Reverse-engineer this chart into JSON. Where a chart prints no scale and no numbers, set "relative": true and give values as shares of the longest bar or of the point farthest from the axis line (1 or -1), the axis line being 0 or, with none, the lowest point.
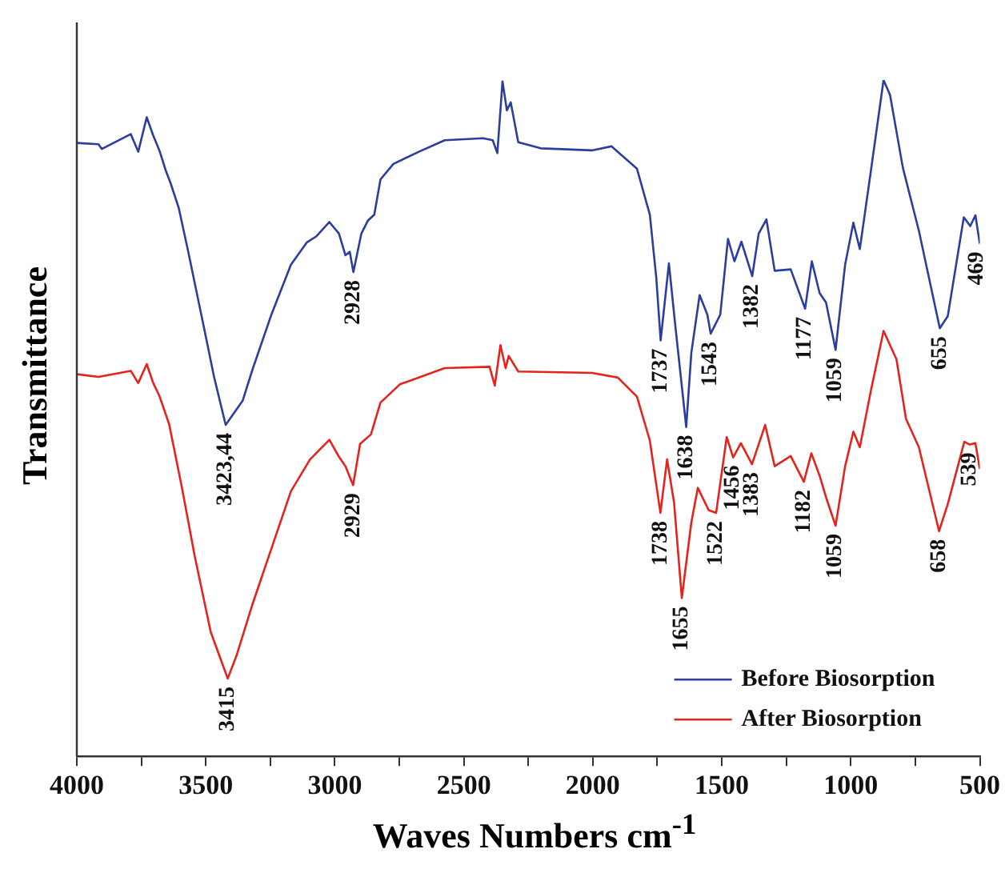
{
  "chart_data": {
    "type": "line",
    "xlabel": "Waves Numbers cm$^{-1}$",
    "ylabel": "Transmittance",
    "relative": true,
    "legend": "bottom right",
    "marker": "none",
    "line_style": "solid",
    "grid": false,
    "xlim": [
      4000,
      500
    ],
    "xticks": [
      4000,
      {
        "value": 3750,
        "label": null
      },
      3500,
      {
        "value": 3250,
        "label": null
      },
      3000,
      {
        "value": 2750,
        "label": null
      },
      2500,
      {
        "value": 2250,
        "label": null
      },
      2000,
      {
        "value": 1750,
        "label": null
      },
      1500,
      {
        "value": 1250,
        "label": null
      },
      1000,
      {
        "value": 750,
        "label": null
      },
      500
    ],
    "series": [
      {
        "name": "Before Biosorption",
        "color": "#2b3e9e",
        "x": [
          4000,
          3916,
          3903,
          3791,
          3762,
          3729,
          3704,
          3680,
          3655,
          3637,
          3605,
          3568,
          3518,
          3468,
          3423,
          3357,
          3319,
          3245,
          3170,
          3108,
          3071,
          3021,
          2984,
          2959,
          2942,
          2928,
          2897,
          2872,
          2847,
          2823,
          2773,
          2674,
          2574,
          2425,
          2388,
          2370,
          2350,
          2333,
          2318,
          2289,
          2202,
          2003,
          1928,
          1829,
          1779,
          1754,
          1737,
          1705,
          1680,
          1638,
          1618,
          1586,
          1556,
          1543,
          1506,
          1476,
          1451,
          1424,
          1382,
          1357,
          1327,
          1295,
          1233,
          1177,
          1151,
          1121,
          1096,
          1059,
          1022,
          990,
          965,
          922,
          873,
          848,
          798,
          736,
          655,
          624,
          562,
          537,
          517,
          500
        ],
        "values": [
          0.907,
          0.905,
          0.898,
          0.92,
          0.894,
          0.945,
          0.918,
          0.896,
          0.866,
          0.848,
          0.811,
          0.746,
          0.654,
          0.561,
          0.49,
          0.526,
          0.572,
          0.654,
          0.727,
          0.76,
          0.769,
          0.79,
          0.773,
          0.741,
          0.746,
          0.716,
          0.773,
          0.792,
          0.801,
          0.853,
          0.876,
          0.894,
          0.911,
          0.914,
          0.911,
          0.892,
          0.998,
          0.955,
          0.967,
          0.908,
          0.899,
          0.896,
          0.902,
          0.869,
          0.801,
          0.708,
          0.615,
          0.729,
          0.636,
          0.487,
          0.597,
          0.682,
          0.653,
          0.625,
          0.653,
          0.765,
          0.732,
          0.761,
          0.71,
          0.773,
          0.794,
          0.718,
          0.72,
          0.662,
          0.732,
          0.685,
          0.671,
          0.601,
          0.727,
          0.789,
          0.75,
          0.866,
          1,
          0.978,
          0.87,
          0.777,
          0.633,
          0.651,
          0.797,
          0.784,
          0.8,
          0.758
        ]
      },
      {
        "name": "After Biosorption",
        "color": "#e3231c",
        "x": [
          4000,
          3916,
          3791,
          3762,
          3729,
          3704,
          3680,
          3642,
          3593,
          3543,
          3481,
          3415,
          3381,
          3319,
          3245,
          3170,
          3096,
          3021,
          2984,
          2959,
          2929,
          2902,
          2860,
          2823,
          2748,
          2574,
          2400,
          2380,
          2358,
          2338,
          2326,
          2289,
          2003,
          1903,
          1829,
          1779,
          1738,
          1712,
          1685,
          1655,
          1618,
          1593,
          1551,
          1522,
          1481,
          1456,
          1426,
          1383,
          1332,
          1295,
          1233,
          1182,
          1153,
          1121,
          1096,
          1059,
          1022,
          990,
          965,
          922,
          873,
          823,
          786,
          736,
          658,
          624,
          560,
          539,
          517,
          500
        ],
        "values": [
          0.565,
          0.561,
          0.57,
          0.552,
          0.58,
          0.552,
          0.533,
          0.491,
          0.398,
          0.296,
          0.184,
          0.115,
          0.149,
          0.225,
          0.308,
          0.392,
          0.439,
          0.468,
          0.443,
          0.429,
          0.401,
          0.462,
          0.476,
          0.523,
          0.55,
          0.574,
          0.576,
          0.548,
          0.608,
          0.574,
          0.592,
          0.569,
          0.567,
          0.56,
          0.532,
          0.467,
          0.36,
          0.439,
          0.375,
          0.234,
          0.346,
          0.397,
          0.364,
          0.36,
          0.472,
          0.442,
          0.463,
          0.432,
          0.49,
          0.429,
          0.444,
          0.406,
          0.448,
          0.415,
          0.383,
          0.341,
          0.429,
          0.48,
          0.457,
          0.541,
          0.629,
          0.587,
          0.499,
          0.457,
          0.333,
          0.373,
          0.465,
          0.461,
          0.463,
          0.425
        ]
      }
    ],
    "annotations": [
      {
        "text": "3423,44",
        "x": 3423,
        "y": 0.49
      },
      {
        "text": "2928",
        "x": 2928,
        "y": 0.716
      },
      {
        "text": "1737",
        "x": 1737,
        "y": 0.615
      },
      {
        "text": "1638",
        "x": 1638,
        "y": 0.487
      },
      {
        "text": "1543",
        "x": 1543,
        "y": 0.625
      },
      {
        "text": "1382",
        "x": 1382,
        "y": 0.71
      },
      {
        "text": "1177",
        "x": 1177,
        "y": 0.662
      },
      {
        "text": "1059",
        "x": 1059,
        "y": 0.601
      },
      {
        "text": "655",
        "x": 655,
        "y": 0.633
      },
      "469",
      {
        "text": "3415",
        "x": 3415,
        "y": 0.115
      },
      {
        "text": "2929",
        "x": 2929,
        "y": 0.401
      },
      {
        "text": "1738",
        "x": 1738,
        "y": 0.36
      },
      {
        "text": "1655",
        "x": 1655,
        "y": 0.234
      },
      {
        "text": "1522",
        "x": 1522,
        "y": 0.36
      },
      {
        "text": "1456",
        "x": 1456,
        "y": 0.442
      },
      {
        "text": "1383",
        "x": 1383,
        "y": 0.432
      },
      {
        "text": "1182",
        "x": 1182,
        "y": 0.406
      },
      {
        "text": "1059",
        "x": 1059,
        "y": 0.341
      },
      {
        "text": "658",
        "x": 658,
        "y": 0.333
      },
      {
        "text": "539",
        "x": 539,
        "y": 0.461
      }
    ]
  }
}
